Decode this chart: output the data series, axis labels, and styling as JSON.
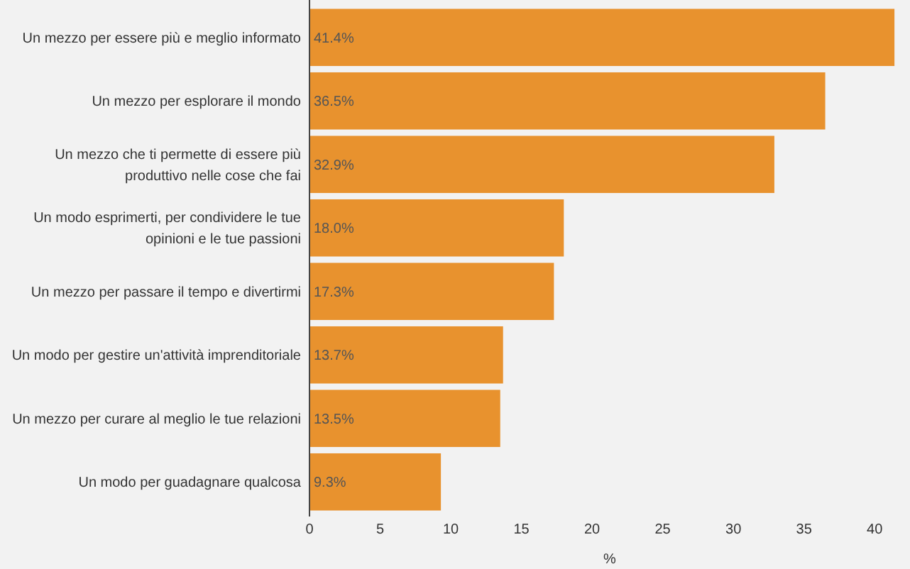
{
  "chart_data": {
    "type": "bar",
    "orientation": "horizontal",
    "xlabel": "%",
    "categories": [
      "Un mezzo per essere più e meglio informato",
      "Un mezzo per esplorare il mondo",
      "Un mezzo che ti permette di essere più produttivo nelle cose che fai",
      "Un modo esprimerti, per condividere le tue opinioni e le tue passioni",
      "Un mezzo per passare il tempo e divertirmi",
      "Un modo per gestire un'attività imprenditoriale",
      "Un mezzo per curare al meglio le tue relazioni",
      "Un modo per guadagnare qualcosa"
    ],
    "values": [
      41.4,
      36.5,
      32.9,
      18.0,
      17.3,
      13.7,
      13.5,
      9.3
    ],
    "value_labels": [
      "41.4%",
      "36.5%",
      "32.9%",
      "18.0%",
      "17.3%",
      "13.7%",
      "13.5%",
      "9.3%"
    ],
    "color": "#e8922e",
    "xlim": [
      0,
      42.5
    ],
    "xticks": [
      0,
      5,
      10,
      15,
      20,
      25,
      30,
      35,
      40
    ],
    "grid": false
  }
}
